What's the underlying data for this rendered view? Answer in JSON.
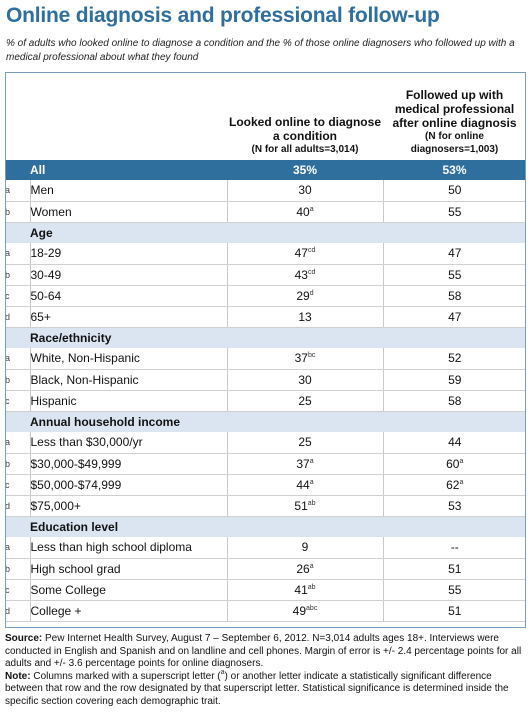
{
  "title": "Online diagnosis and professional follow-up",
  "subtitle": "% of adults who looked online to diagnose a condition and the % of those online diagnosers who followed up with a medical professional about what they found",
  "columns": {
    "col1": {
      "heading": "Looked online to diagnose a condition",
      "note": "(N for all adults=3,014)"
    },
    "col2": {
      "heading": "Followed up with medical professional after online diagnosis",
      "note": "(N for online diagnosers=1,003)"
    }
  },
  "all_row": {
    "label": "All",
    "v1": "35%",
    "v2": "53%"
  },
  "rows": [
    {
      "kind": "data",
      "letter": "a",
      "label": "Men",
      "v1": "30",
      "s1": "",
      "v2": "50",
      "s2": ""
    },
    {
      "kind": "data",
      "letter": "b",
      "label": "Women",
      "v1": "40",
      "s1": "a",
      "v2": "55",
      "s2": ""
    },
    {
      "kind": "section",
      "label": "Age"
    },
    {
      "kind": "data",
      "letter": "a",
      "label": "18-29",
      "v1": "47",
      "s1": "cd",
      "v2": "47",
      "s2": ""
    },
    {
      "kind": "data",
      "letter": "b",
      "label": "30-49",
      "v1": "43",
      "s1": "cd",
      "v2": "55",
      "s2": ""
    },
    {
      "kind": "data",
      "letter": "c",
      "label": "50-64",
      "v1": "29",
      "s1": "d",
      "v2": "58",
      "s2": ""
    },
    {
      "kind": "data",
      "letter": "d",
      "label": "65+",
      "v1": "13",
      "s1": "",
      "v2": "47",
      "s2": ""
    },
    {
      "kind": "section",
      "label": "Race/ethnicity"
    },
    {
      "kind": "data",
      "letter": "a",
      "label": "White, Non-Hispanic",
      "v1": "37",
      "s1": "bc",
      "v2": "52",
      "s2": ""
    },
    {
      "kind": "data",
      "letter": "b",
      "label": "Black, Non-Hispanic",
      "v1": "30",
      "s1": "",
      "v2": "59",
      "s2": ""
    },
    {
      "kind": "data",
      "letter": "c",
      "label": "Hispanic",
      "v1": "25",
      "s1": "",
      "v2": "58",
      "s2": ""
    },
    {
      "kind": "section",
      "label": "Annual household income"
    },
    {
      "kind": "data",
      "letter": "a",
      "label": "Less than $30,000/yr",
      "v1": "25",
      "s1": "",
      "v2": "44",
      "s2": ""
    },
    {
      "kind": "data",
      "letter": "b",
      "label": "$30,000-$49,999",
      "v1": "37",
      "s1": "a",
      "v2": "60",
      "s2": "a"
    },
    {
      "kind": "data",
      "letter": "c",
      "label": "$50,000-$74,999",
      "v1": "44",
      "s1": "a",
      "v2": "62",
      "s2": "a"
    },
    {
      "kind": "data",
      "letter": "d",
      "label": "$75,000+",
      "v1": "51",
      "s1": "ab",
      "v2": "53",
      "s2": ""
    },
    {
      "kind": "section",
      "label": "Education level"
    },
    {
      "kind": "data",
      "letter": "a",
      "label": "Less than high school diploma",
      "v1": "9",
      "s1": "",
      "v2": "--",
      "s2": ""
    },
    {
      "kind": "data",
      "letter": "b",
      "label": "High school grad",
      "v1": "26",
      "s1": "a",
      "v2": "51",
      "s2": ""
    },
    {
      "kind": "data",
      "letter": "c",
      "label": "Some College",
      "v1": "41",
      "s1": "ab",
      "v2": "55",
      "s2": ""
    },
    {
      "kind": "data",
      "letter": "d",
      "label": "College +",
      "v1": "49",
      "s1": "abc",
      "v2": "51",
      "s2": ""
    }
  ],
  "source": {
    "label": "Source:",
    "text": "Pew Internet Health Survey, August 7 – September 6, 2012. N=3,014 adults ages 18+. Interviews were conducted in English and Spanish and on landline and cell phones.  Margin of error is +/- 2.4 percentage points for all adults and +/- 3.6 percentage points for online diagnosers."
  },
  "note": {
    "label": "Note:",
    "text_before": "Columns marked with a superscript letter (",
    "sup": "a",
    "text_after": ") or another letter indicate a statistically significant difference between that row and the row designated by that superscript letter. Statistical significance is determined inside the specific section covering each demographic trait."
  },
  "colors": {
    "title": "#2f6f9e",
    "all_row_bg": "#2f6f9e",
    "section_bg": "#dbe5f1"
  }
}
